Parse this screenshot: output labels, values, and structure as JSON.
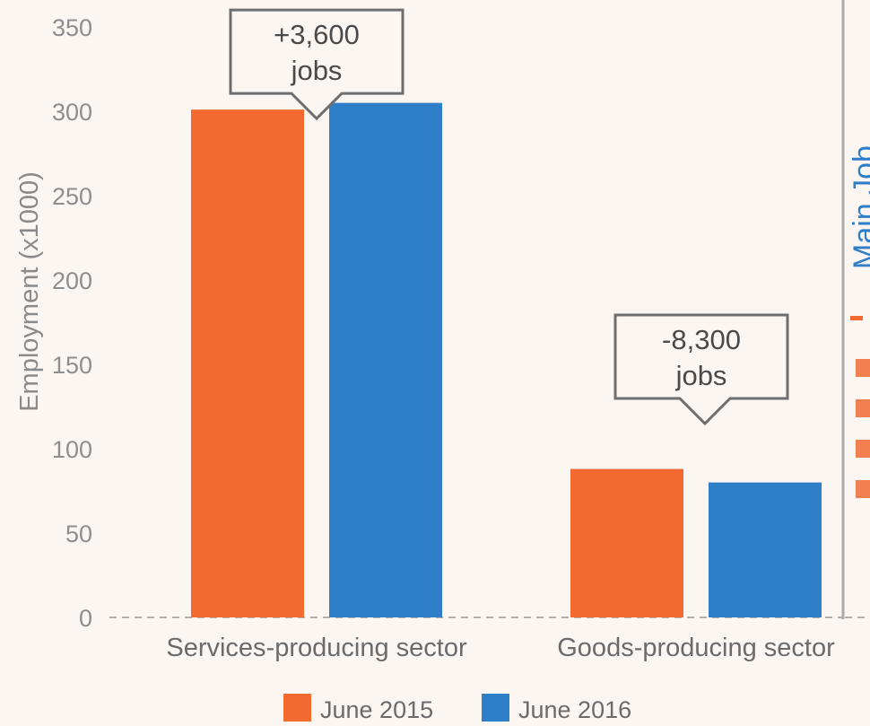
{
  "chart_data": {
    "type": "bar",
    "categories": [
      "Services-producing sector",
      "Goods-producing sector"
    ],
    "series": [
      {
        "name": "June 2015",
        "values": [
          301,
          88
        ],
        "color": "#f26a30"
      },
      {
        "name": "June 2016",
        "values": [
          305,
          80
        ],
        "color": "#2f7ec8"
      }
    ],
    "ylabel": "Employment (x1000)",
    "ylim": [
      0,
      350
    ],
    "yticks": [
      0,
      50,
      100,
      150,
      200,
      250,
      300,
      350
    ],
    "grid": false,
    "legend_position": "bottom-center",
    "annotations": [
      {
        "category": "Services-producing sector",
        "line1": "+3,600",
        "line2": "jobs"
      },
      {
        "category": "Goods-producing sector",
        "line1": "-8,300",
        "line2": "jobs"
      }
    ]
  },
  "side_panel": {
    "divider_color": "#a9a9a9",
    "title_color": "#2f7ec8",
    "accent_color": "#f26a30",
    "clipped_title_text": "Main Job"
  }
}
